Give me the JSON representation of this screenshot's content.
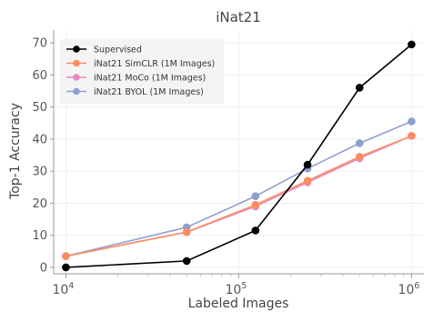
{
  "chart_data": {
    "type": "line",
    "title": "iNat21",
    "xlabel": "Labeled Images",
    "ylabel": "Top-1 Accuracy",
    "x_scale": "log",
    "x": [
      10000,
      50000,
      125000,
      250000,
      500000,
      1000000
    ],
    "xlim": [
      8500,
      1180000
    ],
    "x_ticks": [
      {
        "value": 10000,
        "base": "10",
        "exp": "4"
      },
      {
        "value": 100000,
        "base": "10",
        "exp": "5"
      },
      {
        "value": 1000000,
        "base": "10",
        "exp": "6"
      }
    ],
    "ylim": [
      -2,
      74
    ],
    "y_ticks": [
      "0",
      "10",
      "20",
      "30",
      "40",
      "50",
      "60",
      "70"
    ],
    "grid": true,
    "legend_position": "top-left",
    "series": [
      {
        "name": "Supervised",
        "color": "#000000",
        "values": [
          0.0,
          2.0,
          11.5,
          32.0,
          56.0,
          69.5
        ]
      },
      {
        "name": "iNat21 SimCLR (1M Images)",
        "color": "#fc8d62",
        "values": [
          3.5,
          11.0,
          19.5,
          27.0,
          34.5,
          41.0
        ]
      },
      {
        "name": "iNat21 MoCo (1M Images)",
        "color": "#e78ac3",
        "values": [
          3.5,
          11.0,
          19.0,
          26.5,
          34.0,
          41.0
        ]
      },
      {
        "name": "iNat21 BYOL (1M Images)",
        "color": "#8da0cb",
        "values": [
          3.5,
          12.5,
          22.2,
          30.8,
          38.7,
          45.5
        ]
      }
    ]
  }
}
